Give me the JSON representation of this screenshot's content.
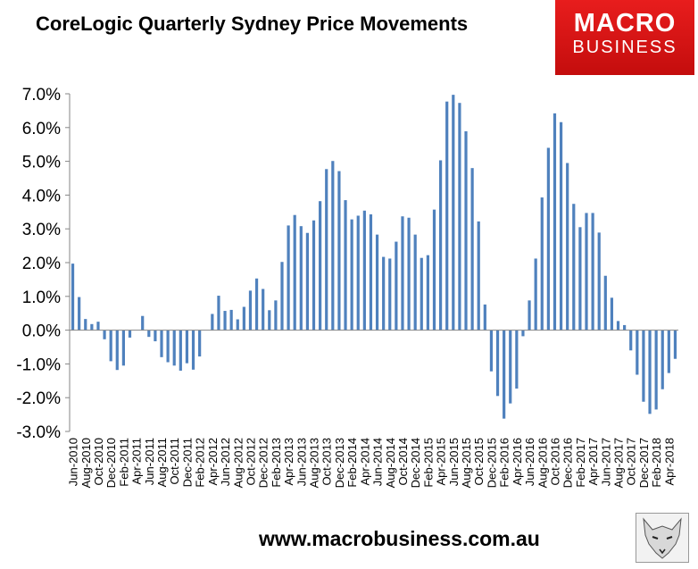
{
  "header": {
    "title": "CoreLogic Quarterly Sydney Price Movements",
    "logo_line1": "MACRO",
    "logo_line2": "BUSINESS"
  },
  "footer": {
    "url": "www.macrobusiness.com.au"
  },
  "colors": {
    "bar": "#4f81bd",
    "logo_bg": "#e11b1b"
  },
  "chart_data": {
    "type": "bar",
    "title": "CoreLogic Quarterly Sydney Price Movements",
    "ylabel": "",
    "xlabel": "",
    "ylim": [
      -3.0,
      7.0
    ],
    "yticks": [
      -3.0,
      -2.0,
      -1.0,
      0.0,
      1.0,
      2.0,
      3.0,
      4.0,
      5.0,
      6.0,
      7.0
    ],
    "ytick_labels": [
      "-3.0%",
      "-2.0%",
      "-1.0%",
      "0.0%",
      "1.0%",
      "2.0%",
      "3.0%",
      "4.0%",
      "5.0%",
      "6.0%",
      "7.0%"
    ],
    "grid": false,
    "legend": "none",
    "categories": [
      "Jun-2010",
      "Jul-2010",
      "Aug-2010",
      "Sep-2010",
      "Oct-2010",
      "Nov-2010",
      "Dec-2010",
      "Jan-2011",
      "Feb-2011",
      "Mar-2011",
      "Apr-2011",
      "May-2011",
      "Jun-2011",
      "Jul-2011",
      "Aug-2011",
      "Sep-2011",
      "Oct-2011",
      "Nov-2011",
      "Dec-2011",
      "Jan-2012",
      "Feb-2012",
      "Mar-2012",
      "Apr-2012",
      "May-2012",
      "Jun-2012",
      "Jul-2012",
      "Aug-2012",
      "Sep-2012",
      "Oct-2012",
      "Nov-2012",
      "Dec-2012",
      "Jan-2013",
      "Feb-2013",
      "Mar-2013",
      "Apr-2013",
      "May-2013",
      "Jun-2013",
      "Jul-2013",
      "Aug-2013",
      "Sep-2013",
      "Oct-2013",
      "Nov-2013",
      "Dec-2013",
      "Jan-2014",
      "Feb-2014",
      "Mar-2014",
      "Apr-2014",
      "May-2014",
      "Jun-2014",
      "Jul-2014",
      "Aug-2014",
      "Sep-2014",
      "Oct-2014",
      "Nov-2014",
      "Dec-2014",
      "Jan-2015",
      "Feb-2015",
      "Mar-2015",
      "Apr-2015",
      "May-2015",
      "Jun-2015",
      "Jul-2015",
      "Aug-2015",
      "Sep-2015",
      "Oct-2015",
      "Nov-2015",
      "Dec-2015",
      "Jan-2016",
      "Feb-2016",
      "Mar-2016",
      "Apr-2016",
      "May-2016",
      "Jun-2016",
      "Jul-2016",
      "Aug-2016",
      "Sep-2016",
      "Oct-2016",
      "Nov-2016",
      "Dec-2016",
      "Jan-2017",
      "Feb-2017",
      "Mar-2017",
      "Apr-2017",
      "May-2017",
      "Jun-2017",
      "Jul-2017",
      "Aug-2017",
      "Sep-2017",
      "Oct-2017",
      "Nov-2017",
      "Dec-2017",
      "Jan-2018",
      "Feb-2018",
      "Mar-2018",
      "Apr-2018",
      "May-2018"
    ],
    "xtick_labels": [
      "Jun-2010",
      "Aug-2010",
      "Oct-2010",
      "Dec-2010",
      "Feb-2011",
      "Apr-2011",
      "Jun-2011",
      "Aug-2011",
      "Oct-2011",
      "Dec-2011",
      "Feb-2012",
      "Apr-2012",
      "Jun-2012",
      "Aug-2012",
      "Oct-2012",
      "Dec-2012",
      "Feb-2013",
      "Apr-2013",
      "Jun-2013",
      "Aug-2013",
      "Oct-2013",
      "Dec-2013",
      "Feb-2014",
      "Apr-2014",
      "Jun-2014",
      "Aug-2014",
      "Oct-2014",
      "Dec-2014",
      "Feb-2015",
      "Apr-2015",
      "Jun-2015",
      "Aug-2015",
      "Oct-2015",
      "Dec-2015",
      "Feb-2016",
      "Apr-2016",
      "Jun-2016",
      "Aug-2016",
      "Oct-2016",
      "Dec-2016",
      "Feb-2017",
      "Apr-2017",
      "Jun-2017",
      "Aug-2017",
      "Oct-2017",
      "Dec-2017",
      "Feb-2018",
      "Apr-2018"
    ],
    "values": [
      1.97,
      0.98,
      0.33,
      0.18,
      0.25,
      -0.27,
      -0.92,
      -1.18,
      -1.05,
      -0.22,
      0.0,
      0.42,
      -0.2,
      -0.33,
      -0.8,
      -0.95,
      -1.05,
      -1.2,
      -0.98,
      -1.17,
      -0.78,
      0.0,
      0.48,
      1.02,
      0.57,
      0.6,
      0.32,
      0.69,
      1.17,
      1.53,
      1.22,
      0.59,
      0.88,
      2.02,
      3.1,
      3.41,
      3.08,
      2.88,
      3.25,
      3.82,
      4.77,
      5.01,
      4.71,
      3.85,
      3.28,
      3.39,
      3.54,
      3.43,
      2.83,
      2.17,
      2.12,
      2.62,
      3.37,
      3.33,
      2.83,
      2.14,
      2.22,
      3.57,
      5.03,
      6.77,
      6.97,
      6.73,
      5.89,
      4.8,
      3.22,
      0.76,
      -1.22,
      -1.95,
      -2.62,
      -2.17,
      -1.73,
      -0.18,
      0.88,
      2.12,
      3.93,
      5.4,
      6.42,
      6.16,
      4.95,
      3.74,
      3.05,
      3.47,
      3.47,
      2.89,
      1.61,
      0.96,
      0.27,
      0.15,
      -0.6,
      -1.32,
      -2.12,
      -2.48,
      -2.35,
      -1.75,
      -1.27,
      -0.85
    ]
  }
}
